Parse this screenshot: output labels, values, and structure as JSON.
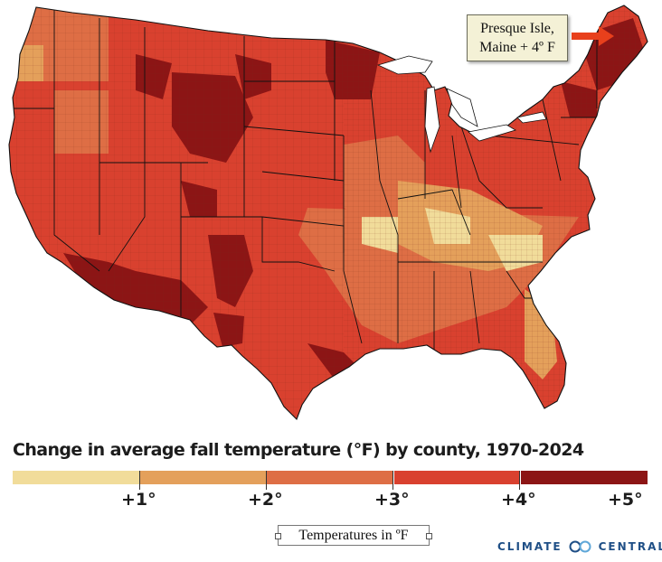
{
  "map": {
    "subject": "Contiguous United States counties",
    "legend_colors": [
      "#f1dc9a",
      "#e4a05b",
      "#de6e45",
      "#d9412f",
      "#8c1515"
    ]
  },
  "callout": {
    "line1": "Presque Isle,",
    "line2": "Maine + 4º F",
    "arrow_color": "#e8401c"
  },
  "legend": {
    "title": "Change in average fall temperature (°F) by county, 1970-2024",
    "ticks": [
      "+1°",
      "+2°",
      "+3°",
      "+4°",
      "+5°"
    ],
    "units_label": "Temperatures in ºF"
  },
  "brand": {
    "name_left": "CLIMATE",
    "name_right": "CENTRAL",
    "color": "#1f4f86"
  }
}
